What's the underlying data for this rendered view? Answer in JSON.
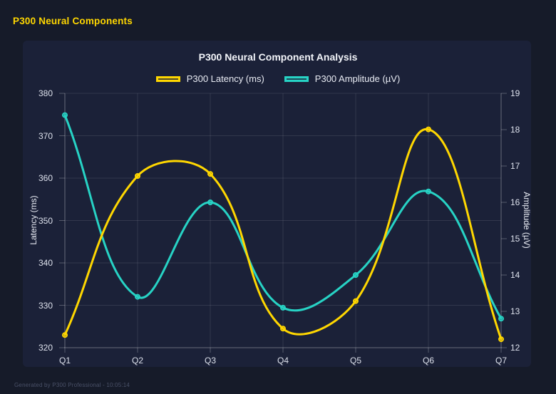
{
  "page": {
    "header": "P300 Neural Components",
    "footer": "Generated by P300 Professional - 10:05:14"
  },
  "colors": {
    "background": "#161b29",
    "panel": "#1b2138",
    "accent_yellow": "#ffd700",
    "accent_teal": "#27d3c5",
    "grid": "rgba(255,255,255,0.10)",
    "axis_border": "rgba(255,255,255,0.26)",
    "tick_text": "#dde1ec"
  },
  "chart_data": {
    "type": "line",
    "title": "P300 Neural Component Analysis",
    "categories": [
      "Q1",
      "Q2",
      "Q3",
      "Q4",
      "Q5",
      "Q6",
      "Q7"
    ],
    "series": [
      {
        "name": "P300 Latency (ms)",
        "axis": "left",
        "color": "#ffd700",
        "values": [
          323,
          360.5,
          361,
          324.5,
          331,
          371.5,
          322
        ]
      },
      {
        "name": "P300 Amplitude (µV)",
        "axis": "right",
        "color": "#27d3c5",
        "values": [
          18.4,
          13.4,
          16.0,
          13.1,
          14.0,
          16.3,
          12.8
        ]
      }
    ],
    "left_axis": {
      "label": "Latency (ms)",
      "min": 320,
      "max": 380,
      "ticks": [
        320,
        330,
        340,
        350,
        360,
        370,
        380
      ]
    },
    "right_axis": {
      "label": "Amplitude (µV)",
      "min": 12,
      "max": 19,
      "ticks": [
        12,
        13,
        14,
        15,
        16,
        17,
        18,
        19
      ]
    },
    "grid": true,
    "legend_position": "top",
    "line_tension": 0.4
  }
}
